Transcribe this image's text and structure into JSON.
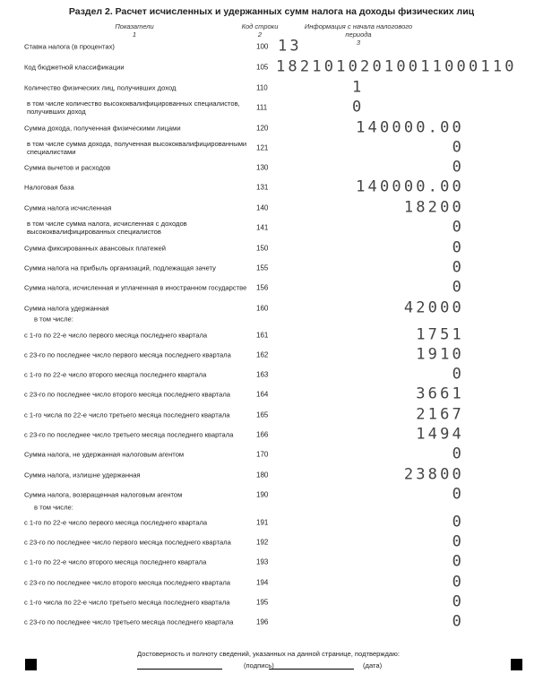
{
  "title": "Раздел 2. Расчет исчисленных и удержанных сумм налога на доходы физических лиц",
  "headers": {
    "col1": "Показатели",
    "col1_num": "1",
    "col2": "Код строки",
    "col2_num": "2",
    "col3": "Информация с начала налогового периода",
    "col3_num": "3"
  },
  "subheading": "в том числе:",
  "rows": [
    {
      "code": "100",
      "label": "Ставка налога (в процентах)",
      "value": "13"
    },
    {
      "code": "105",
      "label": "Код бюджетной классификации",
      "value": "18210102010011000110"
    },
    {
      "code": "110",
      "label": "Количество физических лиц, получивших доход",
      "value": "1"
    },
    {
      "code": "111",
      "label": "в том числе количество высококвалифицированных специалистов, получивших доход",
      "value": "0"
    },
    {
      "code": "120",
      "label": "Сумма дохода, полученная физическими лицами",
      "value": "140000.00"
    },
    {
      "code": "121",
      "label": "в том числе сумма дохода, полученная высококвалифицированными специалистами",
      "value": "0"
    },
    {
      "code": "130",
      "label": "Сумма вычетов и расходов",
      "value": "0"
    },
    {
      "code": "131",
      "label": "Налоговая база",
      "value": "140000.00"
    },
    {
      "code": "140",
      "label": "Сумма налога исчисленная",
      "value": "18200"
    },
    {
      "code": "141",
      "label": "в том числе сумма налога, исчисленная с доходов высококвалифицированных специалистов",
      "value": "0"
    },
    {
      "code": "150",
      "label": "Сумма фиксированных авансовых платежей",
      "value": "0"
    },
    {
      "code": "155",
      "label": "Сумма налога на прибыль организаций, подлежащая зачету",
      "value": "0"
    },
    {
      "code": "156",
      "label": "Сумма налога, исчисленная и уплаченная в иностранном государстве",
      "value": "0"
    },
    {
      "code": "160",
      "label": "Сумма налога удержанная",
      "value": "42000"
    },
    {
      "code": "161",
      "label": "с 1-го по 22-е число первого месяца последнего квартала",
      "value": "1751"
    },
    {
      "code": "162",
      "label": "с 23-го по последнее число первого месяца последнего квартала",
      "value": "1910"
    },
    {
      "code": "163",
      "label": "с 1-го по 22-е число второго месяца последнего квартала",
      "value": "0"
    },
    {
      "code": "164",
      "label": "с 23-го по последнее число второго месяца последнего квартала",
      "value": "3661"
    },
    {
      "code": "165",
      "label": "с 1-го числа по 22-е число третьего месяца последнего квартала",
      "value": "2167"
    },
    {
      "code": "166",
      "label": "с 23-го по последнее число третьего месяца последнего квартала",
      "value": "1494"
    },
    {
      "code": "170",
      "label": "Сумма налога, не удержанная налоговым агентом",
      "value": "0"
    },
    {
      "code": "180",
      "label": "Сумма налога, излишне удержанная",
      "value": "23800"
    },
    {
      "code": "190",
      "label": "Сумма налога, возвращенная налоговым агентом",
      "value": "0"
    },
    {
      "code": "191",
      "label": "с 1-го по 22-е число первого месяца последнего квартала",
      "value": "0"
    },
    {
      "code": "192",
      "label": "с 23-го по последнее число первого месяца последнего квартала",
      "value": "0"
    },
    {
      "code": "193",
      "label": "с 1-го по 22-е число второго месяца последнего квартала",
      "value": "0"
    },
    {
      "code": "194",
      "label": "с 23-го по последнее число второго месяца последнего квартала",
      "value": "0"
    },
    {
      "code": "195",
      "label": "с 1-го числа по 22-е число третьего месяца последнего квартала",
      "value": "0"
    },
    {
      "code": "196",
      "label": "с 23-го по последнее число третьего месяца последнего квартала",
      "value": "0"
    }
  ],
  "footer": {
    "confirm": "Достоверность и полноту сведений, указанных на данной странице, подтверждаю:",
    "signature": "(подпись)",
    "date": "(дата)"
  }
}
